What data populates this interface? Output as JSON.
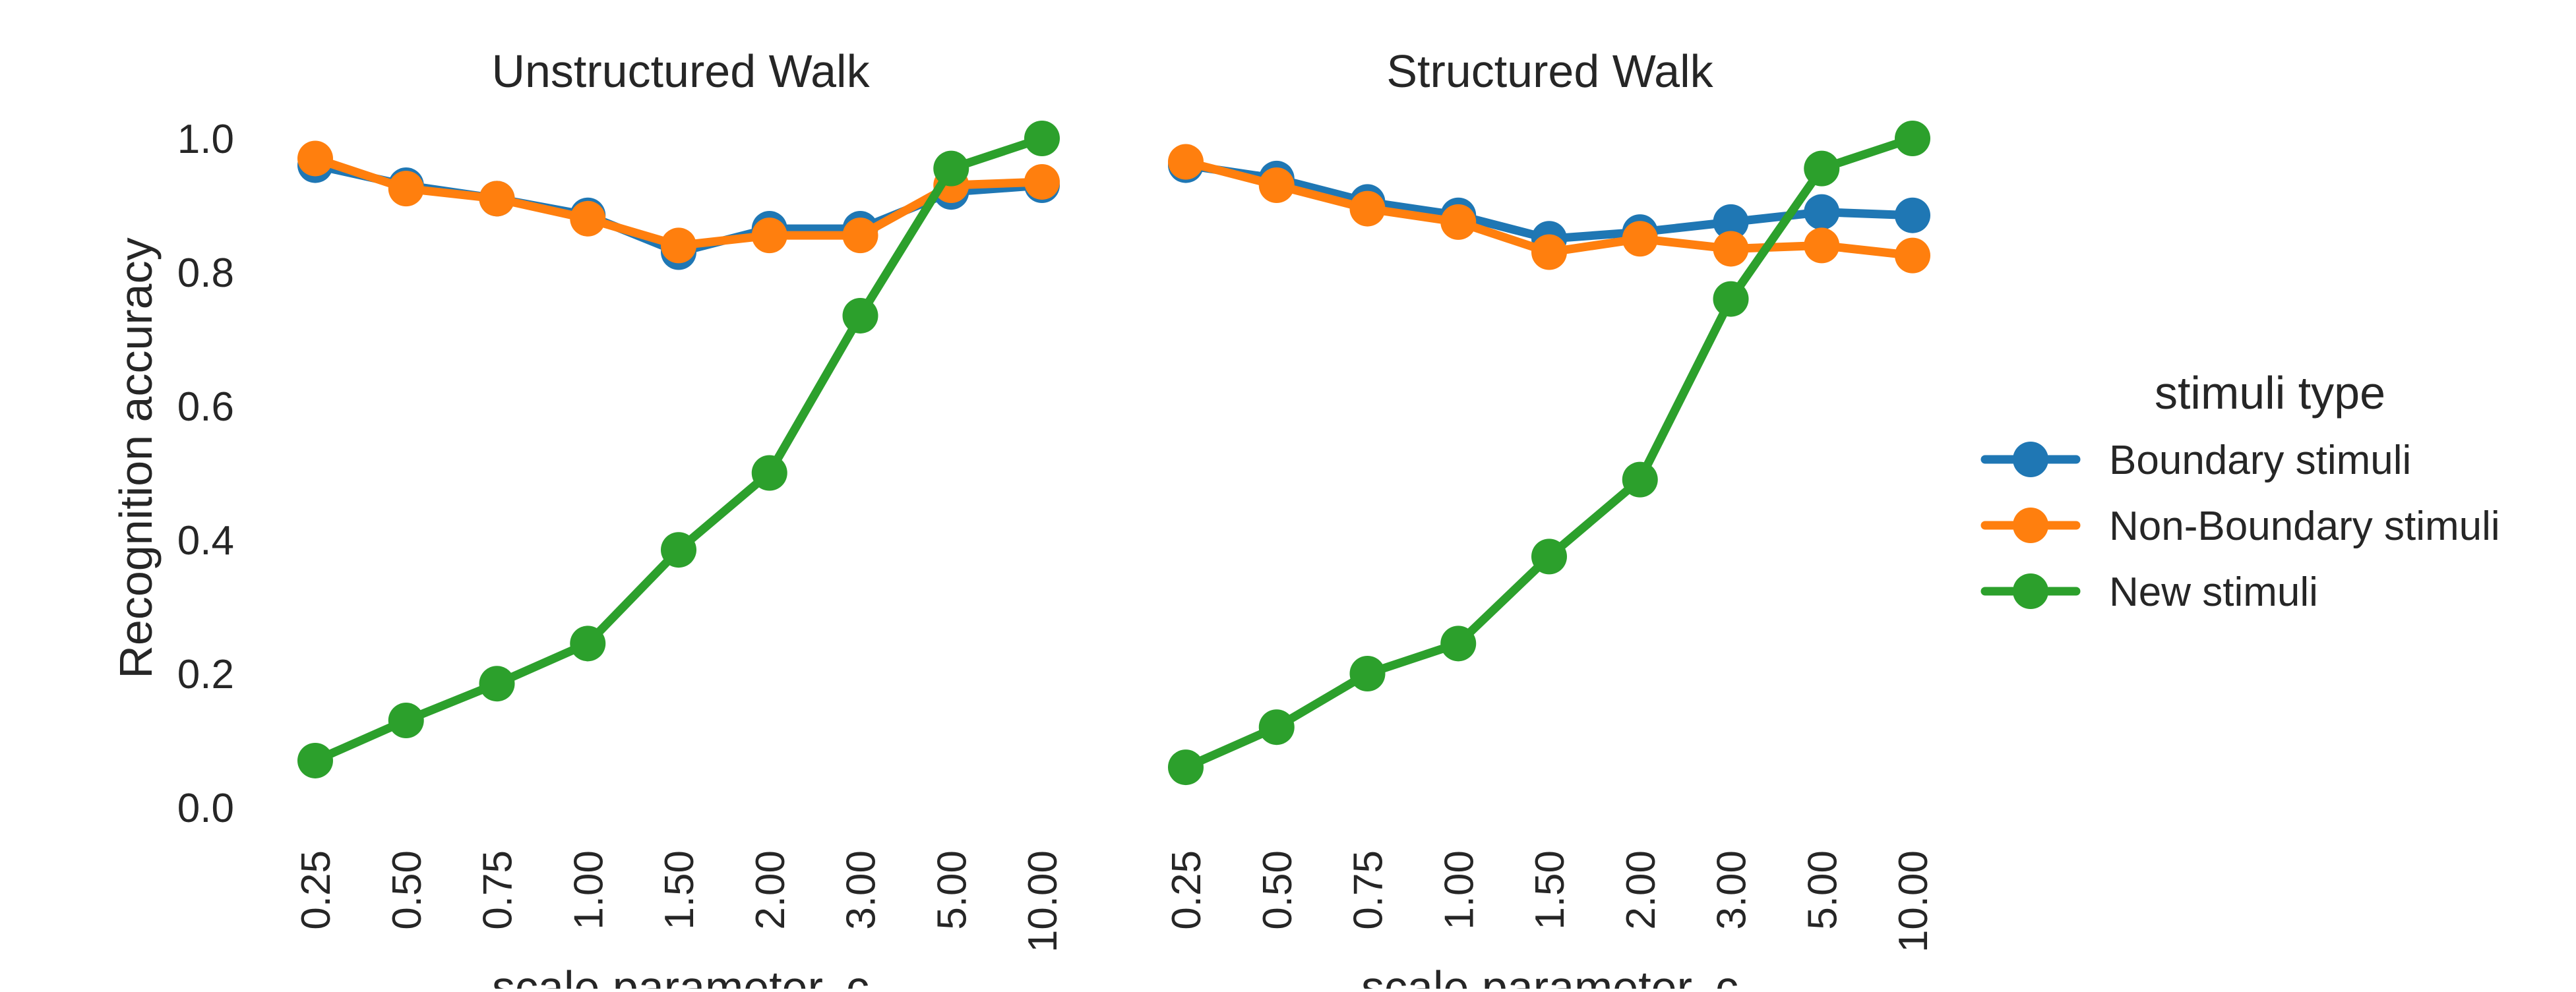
{
  "chart_data": [
    {
      "type": "line",
      "title": "Unstructured Walk",
      "xlabel": "scale parameter, c",
      "ylabel": "Recognition accuracy",
      "categories": [
        "0.25",
        "0.50",
        "0.75",
        "1.00",
        "1.50",
        "2.00",
        "3.00",
        "5.00",
        "10.00"
      ],
      "yticks": [
        "0.0",
        "0.2",
        "0.4",
        "0.6",
        "0.8",
        "1.0"
      ],
      "ylim": [
        0,
        1.0
      ],
      "grid": false,
      "series": [
        {
          "name": "Boundary stimuli",
          "color": "#1f77b4",
          "values": [
            0.96,
            0.93,
            0.91,
            0.885,
            0.83,
            0.865,
            0.865,
            0.92,
            0.93
          ],
          "err": [
            0.01,
            0.01,
            0.015,
            0.015,
            0.025,
            0.015,
            0.015,
            0.015,
            0.01
          ]
        },
        {
          "name": "Non-Boundary stimuli",
          "color": "#ff7f0e",
          "values": [
            0.97,
            0.925,
            0.91,
            0.88,
            0.84,
            0.855,
            0.855,
            0.93,
            0.935
          ],
          "err": [
            0.01,
            0.01,
            0.01,
            0.015,
            0.015,
            0.015,
            0.015,
            0.01,
            0.01
          ]
        },
        {
          "name": "New stimuli",
          "color": "#2ca02c",
          "values": [
            0.07,
            0.13,
            0.185,
            0.245,
            0.385,
            0.5,
            0.735,
            0.955,
            1.0
          ],
          "err": [
            0.005,
            0.01,
            0.01,
            0.015,
            0.02,
            0.02,
            0.02,
            0.01,
            0.0
          ]
        }
      ]
    },
    {
      "type": "line",
      "title": "Structured Walk",
      "xlabel": "scale parameter, c",
      "ylabel": "",
      "categories": [
        "0.25",
        "0.50",
        "0.75",
        "1.00",
        "1.50",
        "2.00",
        "3.00",
        "5.00",
        "10.00"
      ],
      "ylim": [
        0,
        1.0
      ],
      "grid": false,
      "series": [
        {
          "name": "Boundary stimuli",
          "color": "#1f77b4",
          "values": [
            0.96,
            0.94,
            0.905,
            0.885,
            0.85,
            0.86,
            0.875,
            0.89,
            0.885
          ],
          "err": [
            0.01,
            0.01,
            0.015,
            0.015,
            0.015,
            0.015,
            0.015,
            0.02,
            0.02
          ]
        },
        {
          "name": "Non-Boundary stimuli",
          "color": "#ff7f0e",
          "values": [
            0.965,
            0.93,
            0.895,
            0.875,
            0.83,
            0.85,
            0.835,
            0.84,
            0.825
          ],
          "err": [
            0.01,
            0.01,
            0.015,
            0.015,
            0.02,
            0.015,
            0.015,
            0.015,
            0.02
          ]
        },
        {
          "name": "New stimuli",
          "color": "#2ca02c",
          "values": [
            0.06,
            0.12,
            0.2,
            0.245,
            0.375,
            0.49,
            0.76,
            0.955,
            1.0
          ],
          "err": [
            0.005,
            0.01,
            0.01,
            0.015,
            0.02,
            0.02,
            0.02,
            0.01,
            0.0
          ]
        }
      ]
    }
  ],
  "legend": {
    "title": "stimuli type",
    "placement": "right",
    "items": [
      {
        "label": "Boundary stimuli",
        "color": "#1f77b4"
      },
      {
        "label": "Non-Boundary stimuli",
        "color": "#ff7f0e"
      },
      {
        "label": "New stimuli",
        "color": "#2ca02c"
      }
    ]
  }
}
